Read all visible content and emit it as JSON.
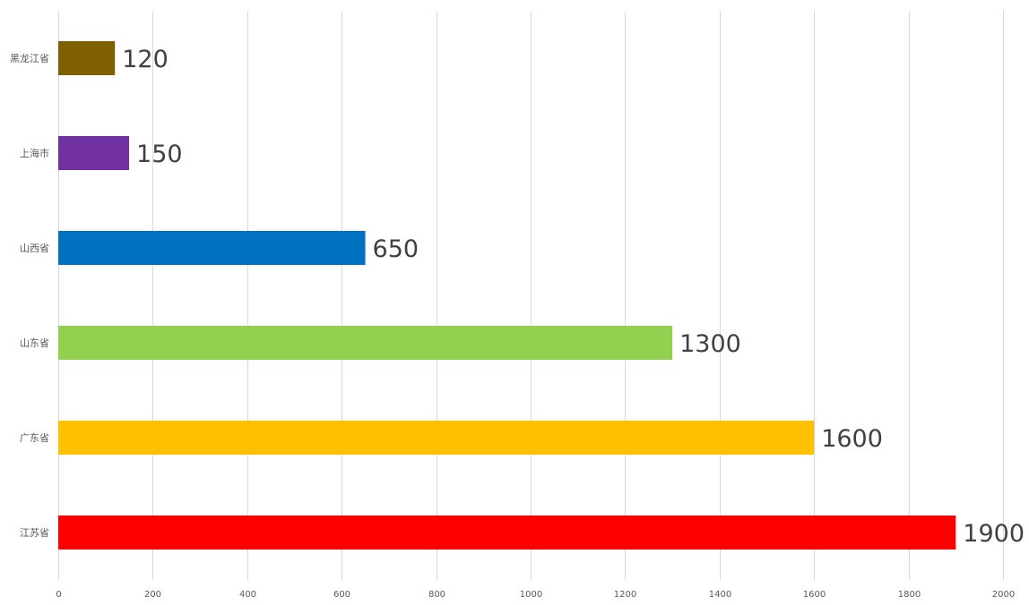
{
  "chart_data": {
    "type": "bar",
    "orientation": "horizontal",
    "title": "",
    "xlabel": "",
    "ylabel": "",
    "categories": [
      "黑龙江省",
      "上海市",
      "山西省",
      "山东省",
      "广东省",
      "江苏省"
    ],
    "values": [
      120,
      150,
      650,
      1300,
      1600,
      1900
    ],
    "colors": [
      "#7f6000",
      "#7030a0",
      "#0070c0",
      "#92d050",
      "#ffc000",
      "#ff0000"
    ],
    "data_labels": [
      "120",
      "150",
      "650",
      "1300",
      "1600",
      "1900"
    ],
    "xlim": [
      0,
      2000
    ],
    "x_ticks": [
      0,
      200,
      400,
      600,
      800,
      1000,
      1200,
      1400,
      1600,
      1800,
      2000
    ],
    "x_tick_labels": [
      "0",
      "200",
      "400",
      "600",
      "800",
      "1000",
      "1200",
      "1400",
      "1600",
      "1800",
      "2000"
    ],
    "grid": "vertical",
    "legend": "none"
  }
}
